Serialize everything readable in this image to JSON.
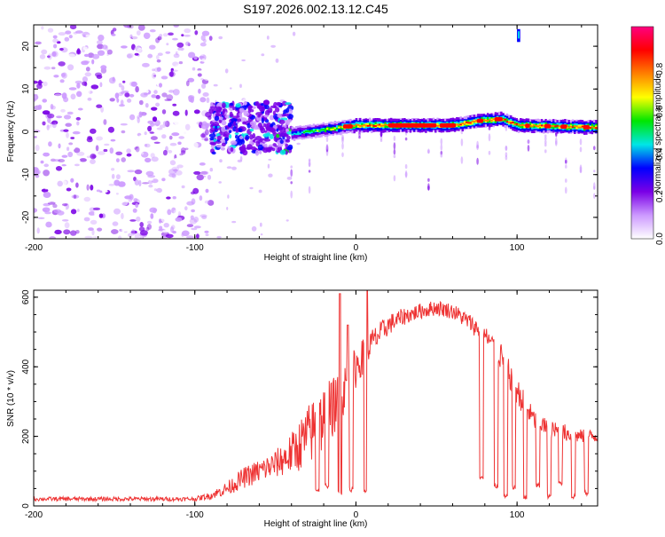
{
  "figure": {
    "title": "S197.2026.002.13.12.C45"
  },
  "chart_data": [
    {
      "type": "heatmap",
      "title": "",
      "xlabel": "Height of straight line (km)",
      "ylabel": "Frequency (Hz)",
      "xlim": [
        -200,
        150
      ],
      "ylim": [
        -25,
        25
      ],
      "xticks": [
        -200,
        -100,
        0,
        100
      ],
      "yticks": [
        -20,
        -10,
        0,
        10,
        20
      ],
      "colorbar": {
        "label": "Normalized spectral amplitude",
        "range": [
          0,
          1
        ],
        "ticks": [
          0.0,
          0.2,
          0.4,
          0.6,
          0.8
        ],
        "colors": [
          "#ffffff",
          "#cc99ff",
          "#7a00e6",
          "#0000ff",
          "#00e6e6",
          "#00e600",
          "#ffff00",
          "#ff8000",
          "#ff0000",
          "#ff0080"
        ]
      },
      "features": [
        {
          "name": "noise",
          "x_range": [
            -200,
            -90
          ],
          "freq_range": [
            -25,
            25
          ],
          "amplitude": 0.1
        },
        {
          "name": "onset-scatter",
          "x_range": [
            -90,
            -40
          ],
          "freq_range": [
            -5,
            7
          ],
          "amplitude": 0.3
        },
        {
          "name": "carrier-line",
          "x_range": [
            -40,
            150
          ],
          "freq": [
            [
              -40,
              -0.5
            ],
            [
              0,
              1.5
            ],
            [
              20,
              1.5
            ],
            [
              60,
              1.5
            ],
            [
              75,
              2.5
            ],
            [
              90,
              3
            ],
            [
              100,
              1.5
            ],
            [
              150,
              1
            ]
          ],
          "amplitude": 0.9
        },
        {
          "name": "spike",
          "x": 101,
          "freq_range": [
            21,
            24
          ],
          "amplitude": 0.3
        }
      ]
    },
    {
      "type": "line",
      "title": "",
      "xlabel": "Height of straight line (km)",
      "ylabel": "SNR (10 * v/v)",
      "xlim": [
        -200,
        150
      ],
      "ylim": [
        0,
        620
      ],
      "xticks": [
        -200,
        -100,
        0,
        100
      ],
      "yticks": [
        0,
        200,
        400,
        600
      ],
      "series": [
        {
          "name": "SNR",
          "color": "#ee3333",
          "envelope": {
            "x": [
              -200,
              -100,
              -90,
              -80,
              -70,
              -60,
              -50,
              -40,
              -30,
              -20,
              -10,
              0,
              10,
              20,
              30,
              40,
              50,
              60,
              70,
              80,
              90,
              100,
              110,
              120,
              130,
              140,
              150
            ],
            "base": [
              20,
              20,
              30,
              50,
              80,
              100,
              120,
              150,
              200,
              250,
              310,
              400,
              470,
              520,
              545,
              560,
              570,
              560,
              530,
              490,
              430,
              330,
              250,
              220,
              210,
              200,
              200
            ],
            "spread": [
              12,
              12,
              20,
              40,
              60,
              70,
              80,
              120,
              180,
              200,
              150,
              120,
              80,
              60,
              50,
              45,
              45,
              45,
              50,
              60,
              80,
              80,
              60,
              50,
              50,
              40,
              40
            ]
          },
          "peaks": [
            {
              "x": -10,
              "y": 610
            },
            {
              "x": -5,
              "y": 520
            },
            {
              "x": 7,
              "y": 620
            }
          ],
          "dips": [
            {
              "x": -24,
              "y": 40
            },
            {
              "x": -18,
              "y": 50
            },
            {
              "x": -10,
              "y": 30
            },
            {
              "x": -3,
              "y": 40
            },
            {
              "x": 6,
              "y": 35
            },
            {
              "x": 78,
              "y": 70
            },
            {
              "x": 87,
              "y": 50
            },
            {
              "x": 93,
              "y": 20
            },
            {
              "x": 98,
              "y": 45
            },
            {
              "x": 105,
              "y": 15
            },
            {
              "x": 113,
              "y": 50
            },
            {
              "x": 120,
              "y": 20
            },
            {
              "x": 127,
              "y": 60
            },
            {
              "x": 135,
              "y": 20
            },
            {
              "x": 143,
              "y": 30
            }
          ]
        }
      ]
    }
  ]
}
